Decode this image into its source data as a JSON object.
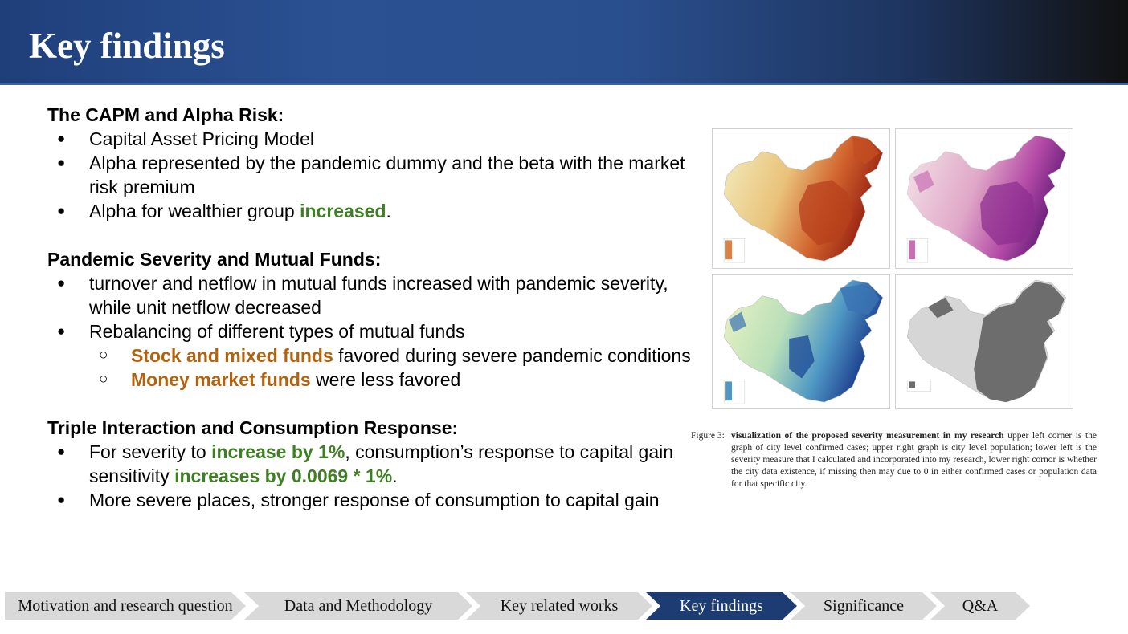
{
  "slide": {
    "title": "Key findings"
  },
  "sections": [
    {
      "heading": "The CAPM and Alpha Risk:",
      "bullets": [
        {
          "text": "Capital Asset Pricing Model"
        },
        {
          "text": "Alpha represented by the pandemic dummy and the beta with the market risk premium"
        },
        {
          "pre": "Alpha for wealthier group ",
          "highlight": "increased",
          "post": "."
        }
      ]
    },
    {
      "heading": "Pandemic Severity and Mutual Funds:",
      "bullets": [
        {
          "text": "turnover and netflow in mutual funds increased with pandemic severity, while unit netflow decreased"
        },
        {
          "text": "Rebalancing of different types of mutual funds"
        }
      ],
      "sub_bullets": [
        {
          "highlight": "Stock and mixed funds",
          "post": " favored during severe pandemic conditions"
        },
        {
          "highlight": "Money market funds",
          "post": " were less favored"
        }
      ]
    },
    {
      "heading": "Triple Interaction and Consumption Response:",
      "bullets": [
        {
          "pre": "For severity to ",
          "highlight1": "increase by 1%",
          "mid": ", consumption’s response to capital gain sensitivity ",
          "highlight2": "increases by 0.0069 * 1%",
          "post": "."
        },
        {
          "text": "More severe places, stronger response of consumption to capital gain"
        }
      ]
    }
  ],
  "figure": {
    "caption_label": "Figure 3:",
    "caption_bold": "visualization of the proposed severity measurement in my research",
    "caption_text": " upper left corner is the graph of city level confirmed cases; upper right graph is city level population; lower left is the severity measure that I calculated and incorporated into my research, lower right cornor is whether the city data existence, if missing then may due to 0 in either confirmed cases or population data for that specific city."
  },
  "colors": {
    "title_gradient_start": "#1f3f7a",
    "highlight_green": "#3f7f23",
    "highlight_orange": "#b3620e",
    "nav_active": "#1d3c74",
    "nav_inactive": "#d9d9d9"
  },
  "nav": {
    "items": [
      {
        "label": "Motivation and research question",
        "active": false
      },
      {
        "label": "Data and Methodology",
        "active": false
      },
      {
        "label": "Key related works",
        "active": false
      },
      {
        "label": "Key findings",
        "active": true
      },
      {
        "label": "Significance",
        "active": false
      },
      {
        "label": "Q&A",
        "active": false
      }
    ]
  }
}
